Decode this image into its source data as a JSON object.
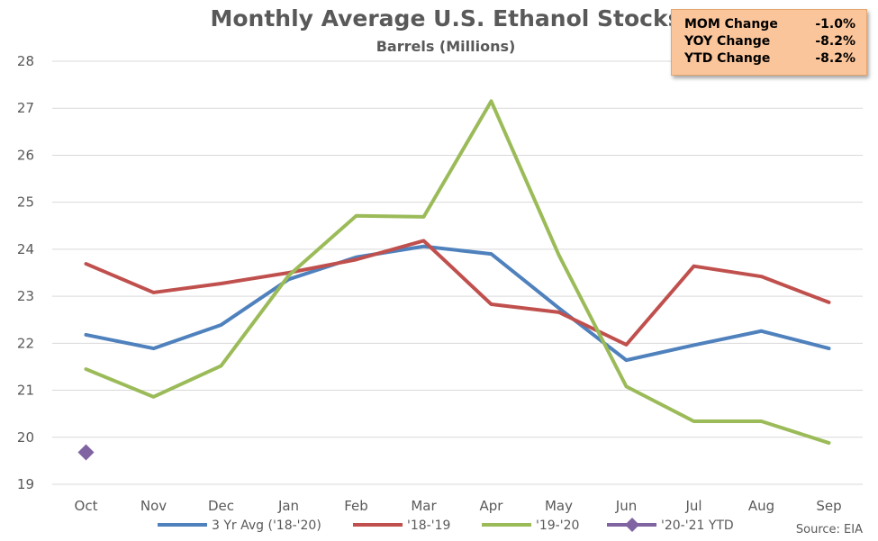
{
  "chart_data": {
    "type": "line",
    "title": "Monthly Average U.S. Ethanol Stocks",
    "subtitle": "Barrels (Millions)",
    "categories": [
      "Oct",
      "Nov",
      "Dec",
      "Jan",
      "Feb",
      "Mar",
      "Apr",
      "May",
      "Jun",
      "Jul",
      "Aug",
      "Sep"
    ],
    "ylim": [
      19,
      28
    ],
    "yticks": [
      19,
      20,
      21,
      22,
      23,
      24,
      25,
      26,
      27,
      28
    ],
    "grid": true,
    "legend_position": "bottom",
    "series": [
      {
        "name": "3 Yr Avg ('18-'20)",
        "color": "#4f81bd",
        "marker": "none",
        "values": [
          22.18,
          21.89,
          22.39,
          23.36,
          23.83,
          24.06,
          23.9,
          22.75,
          21.64,
          21.96,
          22.26,
          21.89
        ]
      },
      {
        "name": "'18-'19",
        "color": "#c0504d",
        "marker": "none",
        "values": [
          23.69,
          23.08,
          23.27,
          23.5,
          23.78,
          24.18,
          22.83,
          22.66,
          21.97,
          23.64,
          23.42,
          22.87
        ]
      },
      {
        "name": "'19-'20",
        "color": "#9bbb59",
        "marker": "none",
        "values": [
          21.45,
          20.86,
          21.52,
          23.44,
          24.71,
          24.69,
          27.15,
          23.88,
          21.08,
          20.34,
          20.34,
          19.88
        ]
      },
      {
        "name": "'20-'21 YTD",
        "color": "#8064a2",
        "marker": "diamond",
        "values": [
          19.68,
          null,
          null,
          null,
          null,
          null,
          null,
          null,
          null,
          null,
          null,
          null
        ]
      }
    ],
    "source": "Source: EIA"
  },
  "stats": [
    {
      "label": "MOM Change",
      "value": "-1.0%"
    },
    {
      "label": "YOY Change",
      "value": "-8.2%"
    },
    {
      "label": "YTD Change",
      "value": "-8.2%"
    }
  ]
}
